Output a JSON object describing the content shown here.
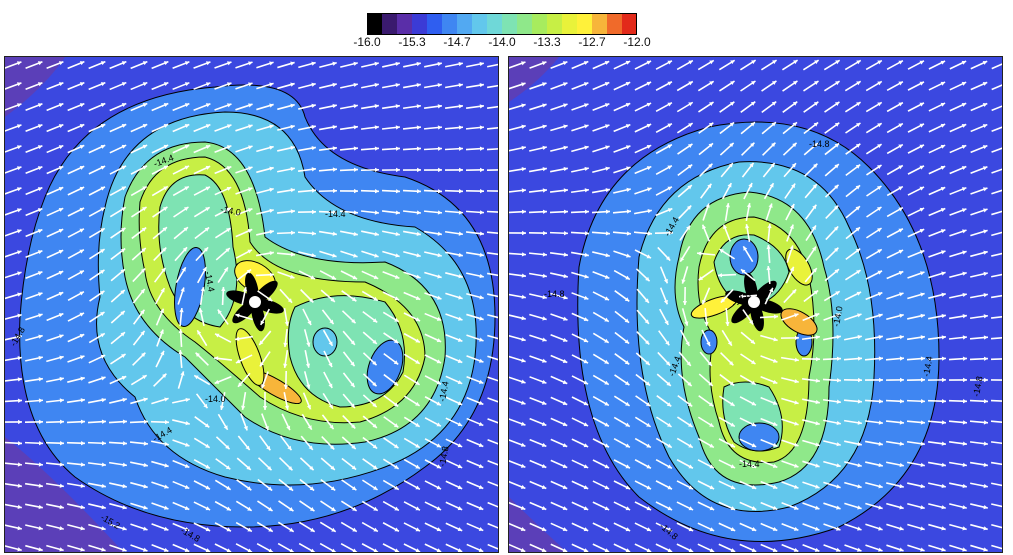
{
  "colorbar": {
    "tick_labels": [
      "-16.0",
      "-15.3",
      "-14.7",
      "-14.0",
      "-13.3",
      "-12.7",
      "-12.0"
    ],
    "colors": [
      "#000000",
      "#3a1a6e",
      "#5a2ea8",
      "#3b3bd6",
      "#2f5ef0",
      "#3f86f2",
      "#52a9f2",
      "#62c7ec",
      "#6fd8d8",
      "#7ee3b3",
      "#8fe88a",
      "#a7ec5e",
      "#c7ef45",
      "#e9f23a",
      "#fff13a",
      "#f7b53a",
      "#f06a2a",
      "#e22a1a"
    ]
  },
  "panels": [
    {
      "name": "left",
      "contour_labels": [
        "-14.4",
        "-14.4",
        "-14.0",
        "-14.4",
        "-14.8",
        "-14.0",
        "-14.4",
        "-14.4",
        "-14.8",
        "-14.8",
        "-15.2"
      ]
    },
    {
      "name": "right",
      "contour_labels": [
        "-14.8",
        "-14.4",
        "-14.8",
        "-14.0",
        "-14.0",
        "-14.4",
        "-14.8",
        "-14.4",
        "-14.8",
        "-14.4"
      ]
    }
  ]
}
